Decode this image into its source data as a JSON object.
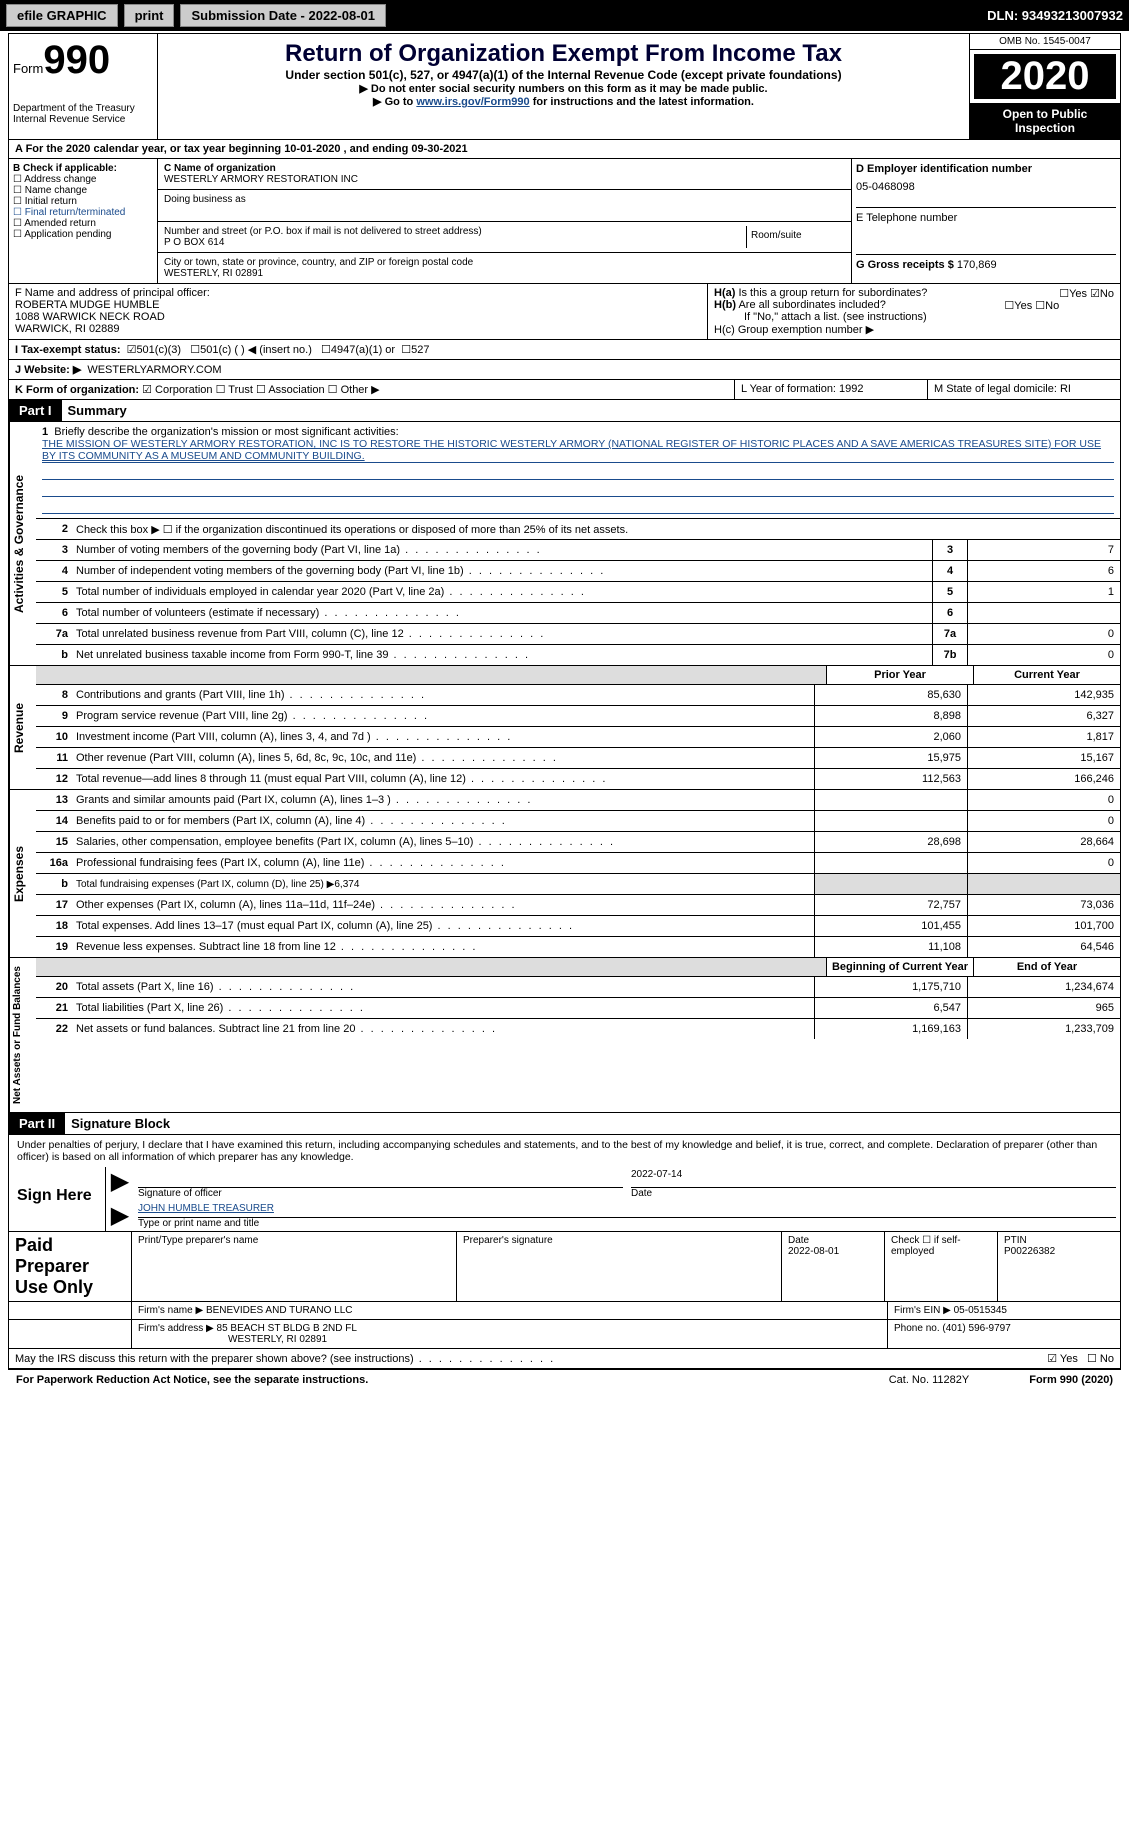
{
  "topbar": {
    "efile": "efile GRAPHIC",
    "print": "print",
    "submission": "Submission Date - 2022-08-01",
    "dln": "DLN: 93493213007932"
  },
  "header": {
    "form_prefix": "Form",
    "form_num": "990",
    "dept": "Department of the Treasury\nInternal Revenue Service",
    "title": "Return of Organization Exempt From Income Tax",
    "subtitle": "Under section 501(c), 527, or 4947(a)(1) of the Internal Revenue Code (except private foundations)",
    "instr1": "▶ Do not enter social security numbers on this form as it may be made public.",
    "instr2_pre": "▶ Go to ",
    "instr2_link": "www.irs.gov/Form990",
    "instr2_post": " for instructions and the latest information.",
    "omb": "OMB No. 1545-0047",
    "year": "2020",
    "open": "Open to Public Inspection"
  },
  "line_a": "A For the 2020 calendar year, or tax year beginning 10-01-2020    , and ending 09-30-2021",
  "box_b": {
    "title": "B Check if applicable:",
    "items": [
      "Address change",
      "Name change",
      "Initial return",
      "Final return/terminated",
      "Amended return",
      "Application pending"
    ]
  },
  "box_c": {
    "name_lbl": "C Name of organization",
    "name": "WESTERLY ARMORY RESTORATION INC",
    "dba_lbl": "Doing business as",
    "street_lbl": "Number and street (or P.O. box if mail is not delivered to street address)",
    "room_lbl": "Room/suite",
    "street": "P O BOX 614",
    "city_lbl": "City or town, state or province, country, and ZIP or foreign postal code",
    "city": "WESTERLY, RI  02891"
  },
  "box_d": {
    "ein_lbl": "D Employer identification number",
    "ein": "05-0468098",
    "phone_lbl": "E Telephone number",
    "gross_lbl": "G Gross receipts $",
    "gross": "170,869"
  },
  "box_f": {
    "lbl": "F  Name and address of principal officer:",
    "line1": "ROBERTA MUDGE HUMBLE",
    "line2": "1088 WARWICK NECK ROAD",
    "line3": "WARWICK, RI  02889"
  },
  "box_h": {
    "ha": "H(a)  Is this a group return for subordinates?",
    "hb": "H(b)  Are all subordinates included?",
    "hb_note": "If \"No,\" attach a list. (see instructions)",
    "hc": "H(c)  Group exemption number ▶"
  },
  "line_i": {
    "lbl": "I  Tax-exempt status:",
    "o1": "501(c)(3)",
    "o2": "501(c) (  ) ◀ (insert no.)",
    "o3": "4947(a)(1) or",
    "o4": "527"
  },
  "line_j": {
    "lbl": "J  Website: ▶",
    "val": "WESTERLYARMORY.COM"
  },
  "line_k": {
    "lbl": "K Form of organization:",
    "o1": "Corporation",
    "o2": "Trust",
    "o3": "Association",
    "o4": "Other ▶"
  },
  "line_lm": {
    "l": "L Year of formation: 1992",
    "m": "M State of legal domicile: RI"
  },
  "part1": {
    "hdr": "Part I",
    "title": "Summary",
    "side1": "Activities & Governance",
    "side2": "Revenue",
    "side3": "Expenses",
    "side4": "Net Assets or Fund Balances",
    "q1": "Briefly describe the organization's mission or most significant activities:",
    "mission": "THE MISSION OF WESTERLY ARMORY RESTORATION, INC IS TO RESTORE THE HISTORIC WESTERLY ARMORY (NATIONAL REGISTER OF HISTORIC PLACES AND A SAVE AMERICAS TREASURES SITE) FOR USE BY ITS COMMUNITY AS A MUSEUM AND COMMUNITY BUILDING.",
    "q2": "Check this box ▶ ☐ if the organization discontinued its operations or disposed of more than 25% of its net assets.",
    "rows_gov": [
      {
        "n": "3",
        "d": "Number of voting members of the governing body (Part VI, line 1a)",
        "b": "3",
        "v": "7"
      },
      {
        "n": "4",
        "d": "Number of independent voting members of the governing body (Part VI, line 1b)",
        "b": "4",
        "v": "6"
      },
      {
        "n": "5",
        "d": "Total number of individuals employed in calendar year 2020 (Part V, line 2a)",
        "b": "5",
        "v": "1"
      },
      {
        "n": "6",
        "d": "Total number of volunteers (estimate if necessary)",
        "b": "6",
        "v": ""
      },
      {
        "n": "7a",
        "d": "Total unrelated business revenue from Part VIII, column (C), line 12",
        "b": "7a",
        "v": "0"
      },
      {
        "n": "b",
        "d": "Net unrelated business taxable income from Form 990-T, line 39",
        "b": "7b",
        "v": "0"
      }
    ],
    "col_prior": "Prior Year",
    "col_current": "Current Year",
    "rows_rev": [
      {
        "n": "8",
        "d": "Contributions and grants (Part VIII, line 1h)",
        "p": "85,630",
        "c": "142,935"
      },
      {
        "n": "9",
        "d": "Program service revenue (Part VIII, line 2g)",
        "p": "8,898",
        "c": "6,327"
      },
      {
        "n": "10",
        "d": "Investment income (Part VIII, column (A), lines 3, 4, and 7d )",
        "p": "2,060",
        "c": "1,817"
      },
      {
        "n": "11",
        "d": "Other revenue (Part VIII, column (A), lines 5, 6d, 8c, 9c, 10c, and 11e)",
        "p": "15,975",
        "c": "15,167"
      },
      {
        "n": "12",
        "d": "Total revenue—add lines 8 through 11 (must equal Part VIII, column (A), line 12)",
        "p": "112,563",
        "c": "166,246"
      }
    ],
    "rows_exp": [
      {
        "n": "13",
        "d": "Grants and similar amounts paid (Part IX, column (A), lines 1–3 )",
        "p": "",
        "c": "0"
      },
      {
        "n": "14",
        "d": "Benefits paid to or for members (Part IX, column (A), line 4)",
        "p": "",
        "c": "0"
      },
      {
        "n": "15",
        "d": "Salaries, other compensation, employee benefits (Part IX, column (A), lines 5–10)",
        "p": "28,698",
        "c": "28,664"
      },
      {
        "n": "16a",
        "d": "Professional fundraising fees (Part IX, column (A), line 11e)",
        "p": "",
        "c": "0"
      },
      {
        "n": "b",
        "d": "Total fundraising expenses (Part IX, column (D), line 25) ▶6,374",
        "grey": true
      },
      {
        "n": "17",
        "d": "Other expenses (Part IX, column (A), lines 11a–11d, 11f–24e)",
        "p": "72,757",
        "c": "73,036"
      },
      {
        "n": "18",
        "d": "Total expenses. Add lines 13–17 (must equal Part IX, column (A), line 25)",
        "p": "101,455",
        "c": "101,700"
      },
      {
        "n": "19",
        "d": "Revenue less expenses. Subtract line 18 from line 12",
        "p": "11,108",
        "c": "64,546"
      }
    ],
    "col_begin": "Beginning of Current Year",
    "col_end": "End of Year",
    "rows_net": [
      {
        "n": "20",
        "d": "Total assets (Part X, line 16)",
        "p": "1,175,710",
        "c": "1,234,674"
      },
      {
        "n": "21",
        "d": "Total liabilities (Part X, line 26)",
        "p": "6,547",
        "c": "965"
      },
      {
        "n": "22",
        "d": "Net assets or fund balances. Subtract line 21 from line 20",
        "p": "1,169,163",
        "c": "1,233,709"
      }
    ]
  },
  "part2": {
    "hdr": "Part II",
    "title": "Signature Block",
    "decl": "Under penalties of perjury, I declare that I have examined this return, including accompanying schedules and statements, and to the best of my knowledge and belief, it is true, correct, and complete. Declaration of preparer (other than officer) is based on all information of which preparer has any knowledge.",
    "sign_here": "Sign Here",
    "sig_officer": "Signature of officer",
    "sig_date": "2022-07-14",
    "date_lbl": "Date",
    "officer_name": "JOHN HUMBLE  TREASURER",
    "type_name": "Type or print name and title",
    "paid_prep": "Paid Preparer Use Only",
    "prep_name_lbl": "Print/Type preparer's name",
    "prep_sig_lbl": "Preparer's signature",
    "prep_date_lbl": "Date",
    "prep_date": "2022-08-01",
    "self_emp": "Check ☐ if self-employed",
    "ptin_lbl": "PTIN",
    "ptin": "P00226382",
    "firm_name_lbl": "Firm's name    ▶",
    "firm_name": "BENEVIDES AND TURANO LLC",
    "firm_ein_lbl": "Firm's EIN ▶",
    "firm_ein": "05-0515345",
    "firm_addr_lbl": "Firm's address ▶",
    "firm_addr1": "85 BEACH ST BLDG B 2ND FL",
    "firm_addr2": "WESTERLY, RI  02891",
    "phone_lbl": "Phone no.",
    "phone": "(401) 596-9797",
    "may_irs": "May the IRS discuss this return with the preparer shown above? (see instructions)"
  },
  "footer": {
    "left": "For Paperwork Reduction Act Notice, see the separate instructions.",
    "mid": "Cat. No. 11282Y",
    "right": "Form 990 (2020)"
  }
}
